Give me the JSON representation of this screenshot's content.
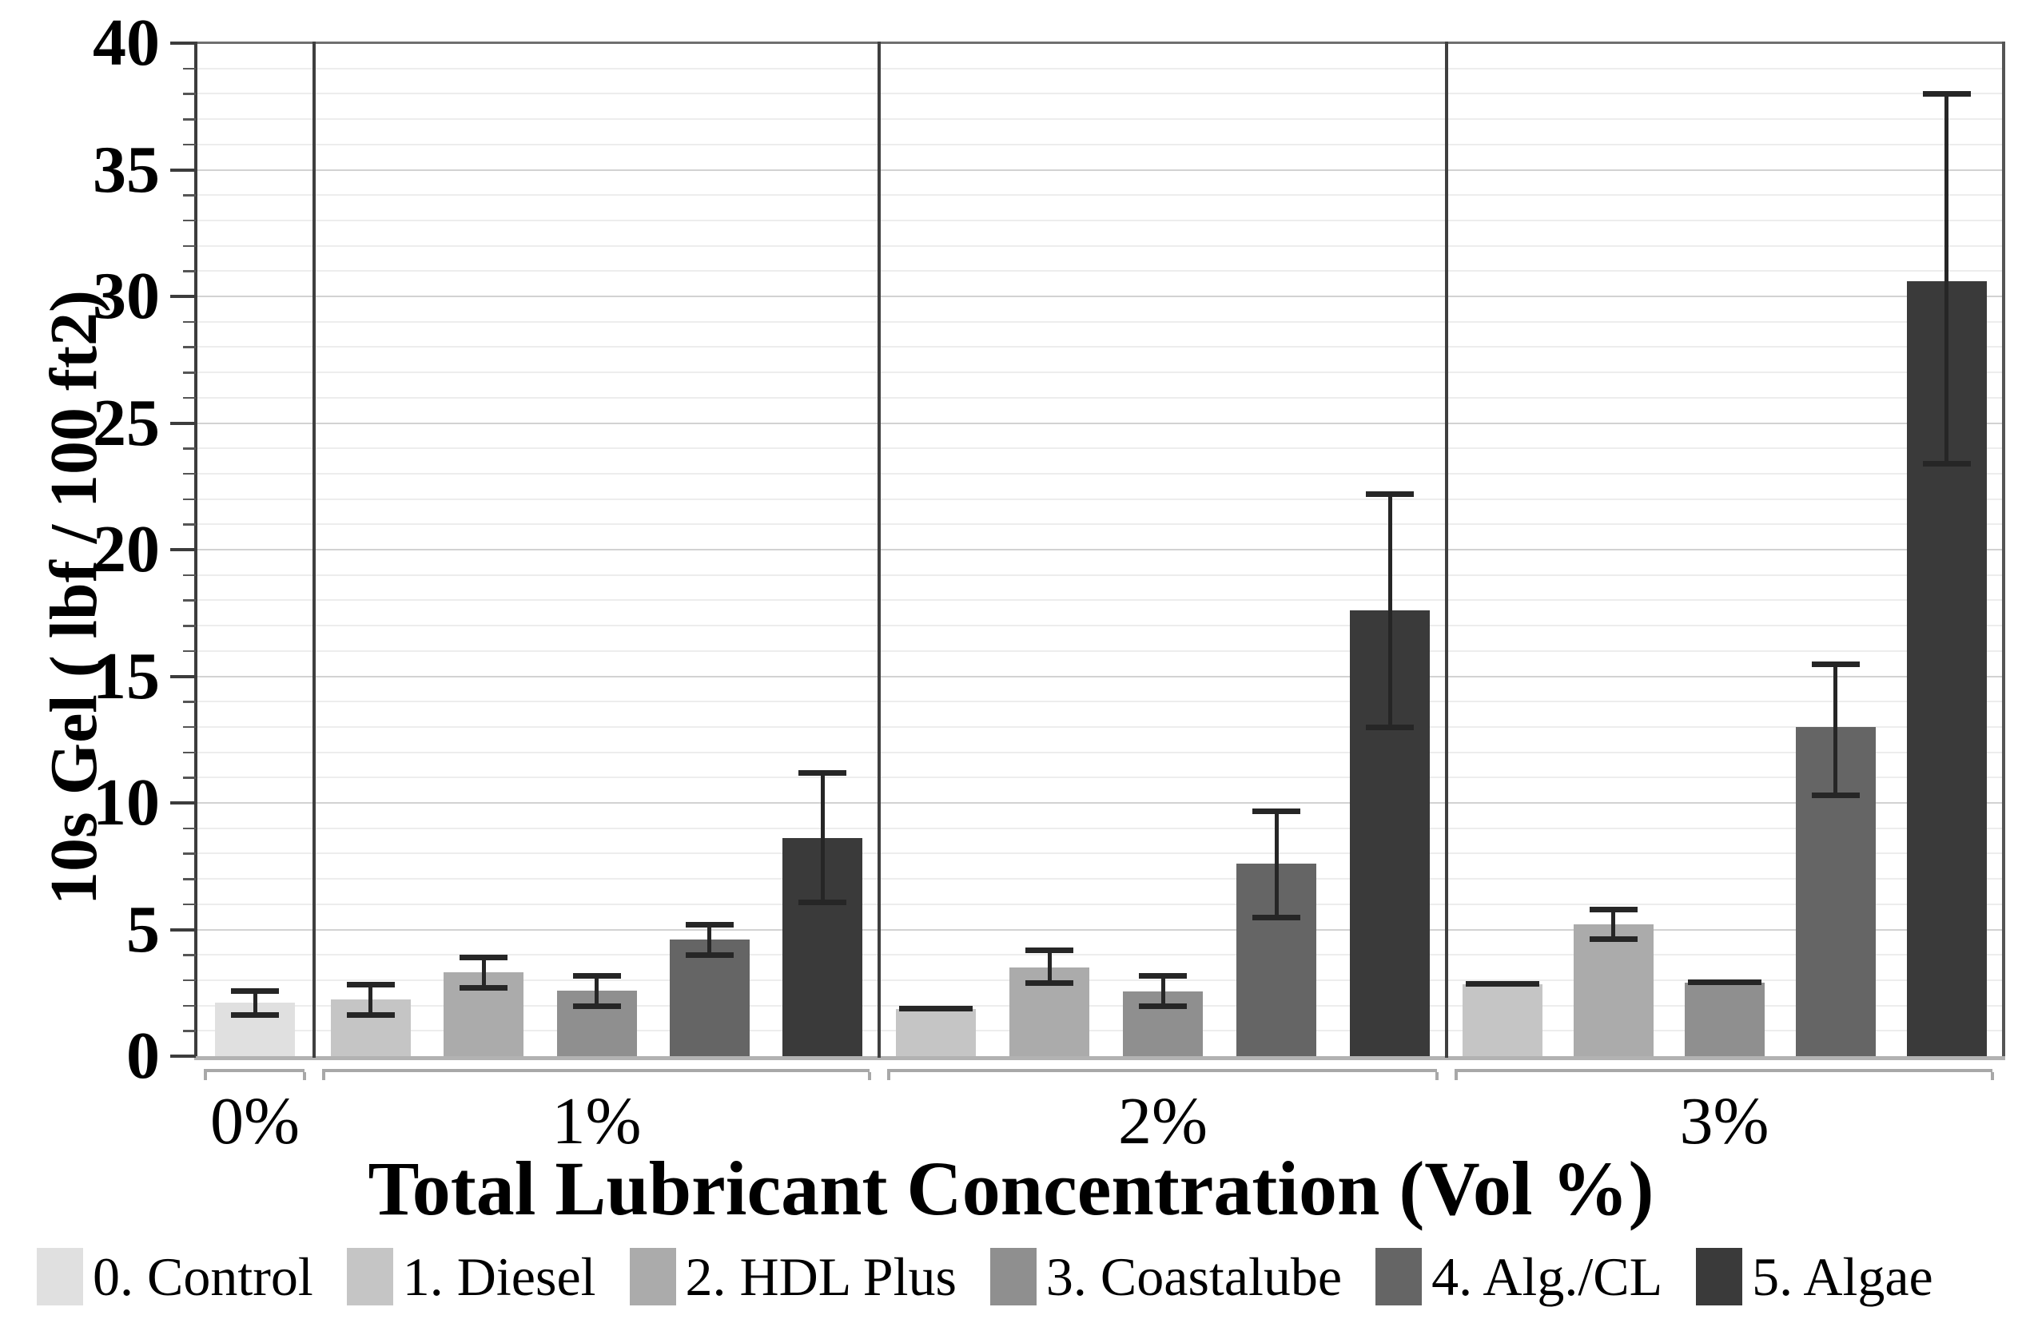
{
  "chart_data": {
    "type": "bar",
    "title": "",
    "ylabel": "10s Gel ( lbf / 100 ft2)",
    "xlabel": "Total Lubricant Concentration (Vol %)",
    "ylim": [
      0,
      40
    ],
    "ytick_step": 5,
    "yminor_step": 1,
    "grid": "on",
    "legend_position": "bottom",
    "error_bars": true,
    "groups": [
      {
        "label": "0%",
        "bars": [
          {
            "series": "0. Control",
            "value": 2.1,
            "err_low": 1.65,
            "err_high": 2.6
          }
        ]
      },
      {
        "label": "1%",
        "bars": [
          {
            "series": "1. Diesel",
            "value": 2.25,
            "err_low": 1.65,
            "err_high": 2.85
          },
          {
            "series": "2. HDL Plus",
            "value": 3.3,
            "err_low": 2.7,
            "err_high": 3.9
          },
          {
            "series": "3. Coastalube",
            "value": 2.6,
            "err_low": 2.0,
            "err_high": 3.2
          },
          {
            "series": "4. Alg./CL",
            "value": 4.6,
            "err_low": 4.0,
            "err_high": 5.2
          },
          {
            "series": "5. Algae",
            "value": 8.6,
            "err_low": 6.1,
            "err_high": 11.2
          }
        ]
      },
      {
        "label": "2%",
        "bars": [
          {
            "series": "1. Diesel",
            "value": 1.85,
            "err_low": 1.85,
            "err_high": 1.85
          },
          {
            "series": "2. HDL Plus",
            "value": 3.5,
            "err_low": 2.9,
            "err_high": 4.2
          },
          {
            "series": "3. Coastalube",
            "value": 2.55,
            "err_low": 2.0,
            "err_high": 3.2
          },
          {
            "series": "4. Alg./CL",
            "value": 7.6,
            "err_low": 5.5,
            "err_high": 9.7
          },
          {
            "series": "5. Algae",
            "value": 17.6,
            "err_low": 13.0,
            "err_high": 22.2
          }
        ]
      },
      {
        "label": "3%",
        "bars": [
          {
            "series": "1. Diesel",
            "value": 2.85,
            "err_low": 2.85,
            "err_high": 2.85
          },
          {
            "series": "2. HDL Plus",
            "value": 5.2,
            "err_low": 4.65,
            "err_high": 5.8
          },
          {
            "series": "3. Coastalube",
            "value": 2.9,
            "err_low": 2.9,
            "err_high": 2.9
          },
          {
            "series": "4. Alg./CL",
            "value": 13.0,
            "err_low": 10.3,
            "err_high": 15.5
          },
          {
            "series": "5. Algae",
            "value": 30.6,
            "err_low": 23.4,
            "err_high": 38.0
          }
        ]
      }
    ],
    "legend": [
      {
        "label": "0. Control",
        "color": "#e0e0e0"
      },
      {
        "label": "1. Diesel",
        "color": "#c5c5c5"
      },
      {
        "label": "2. HDL Plus",
        "color": "#ababab"
      },
      {
        "label": "3. Coastalube",
        "color": "#8f8f8f"
      },
      {
        "label": "4. Alg./CL",
        "color": "#656565"
      },
      {
        "label": "5. Algae",
        "color": "#3a3a3a"
      }
    ]
  }
}
